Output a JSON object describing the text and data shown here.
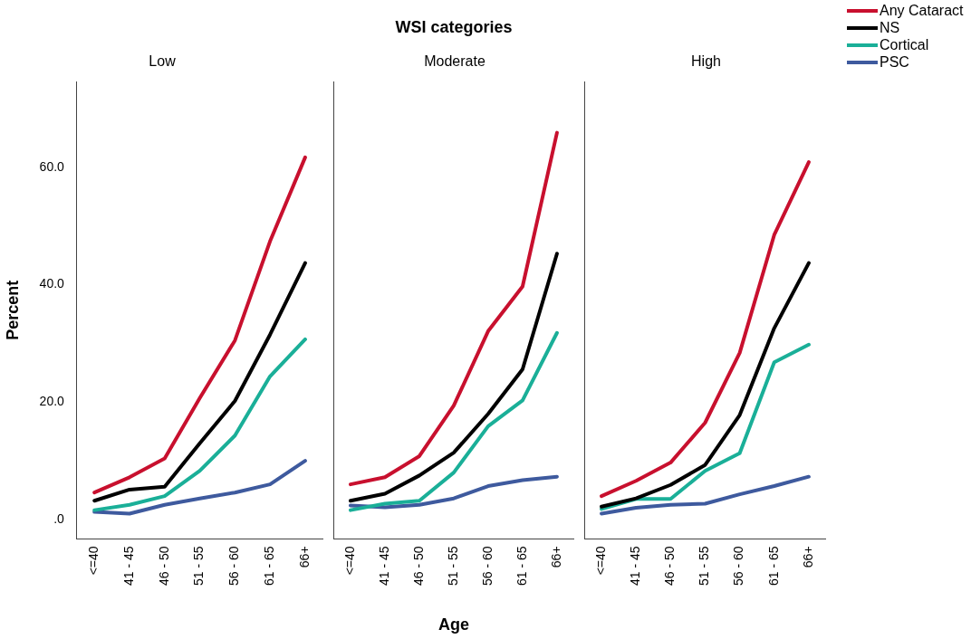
{
  "chart_data": [
    {
      "type": "line",
      "title": "Low",
      "ylabel": "Percent",
      "categories": [
        "<=40",
        "41 - 45",
        "46 - 50",
        "51 - 55",
        "56 - 60",
        "61 - 65",
        "66+"
      ],
      "ylim": [
        -3.3,
        74.6
      ],
      "yticks": [
        {
          "value": 0,
          "label": ".0"
        },
        {
          "value": 20,
          "label": "20.0"
        },
        {
          "value": 40,
          "label": "40.0"
        },
        {
          "value": 60,
          "label": "60.0"
        }
      ],
      "grid": false,
      "legend": false,
      "marker": "none",
      "line_style": "solid",
      "series": [
        {
          "color": "#c8102e",
          "values": [
            4.6,
            7.2,
            10.4,
            20.7,
            30.5,
            47.4,
            61.7
          ]
        },
        {
          "color": "#000000",
          "values": [
            3.2,
            5.1,
            5.6,
            13.0,
            20.2,
            31.5,
            43.7
          ]
        },
        {
          "color": "#1aaf98",
          "values": [
            1.6,
            2.5,
            4.0,
            8.3,
            14.3,
            24.4,
            30.7
          ]
        },
        {
          "color": "#3e5a9e",
          "values": [
            1.3,
            1.0,
            2.5,
            3.6,
            4.6,
            6.0,
            10.0
          ]
        }
      ]
    },
    {
      "type": "line",
      "title": "Moderate",
      "xlabel": "Age",
      "annotations": [
        "WSI categories"
      ],
      "categories": [
        "<=40",
        "41 - 45",
        "46 - 50",
        "51 - 55",
        "56 - 60",
        "61 - 65",
        "66+"
      ],
      "ylim": [
        -3.3,
        74.6
      ],
      "tick_labels": "x",
      "grid": false,
      "legend": false,
      "marker": "none",
      "line_style": "solid",
      "series": [
        {
          "color": "#c8102e",
          "values": [
            6.0,
            7.2,
            10.8,
            19.4,
            32.1,
            39.7,
            65.9
          ]
        },
        {
          "color": "#000000",
          "values": [
            3.2,
            4.4,
            7.5,
            11.4,
            18.0,
            25.6,
            45.3
          ]
        },
        {
          "color": "#1aaf98",
          "values": [
            1.6,
            2.7,
            3.2,
            8.0,
            15.9,
            20.3,
            31.8
          ]
        },
        {
          "color": "#3e5a9e",
          "values": [
            2.4,
            2.1,
            2.5,
            3.6,
            5.7,
            6.7,
            7.3
          ]
        }
      ]
    },
    {
      "type": "line",
      "title": "High",
      "categories": [
        "<=40",
        "41 - 45",
        "46 - 50",
        "51 - 55",
        "56 - 60",
        "61 - 65",
        "66+"
      ],
      "ylim": [
        -3.3,
        74.6
      ],
      "tick_labels": "x",
      "grid": false,
      "legend": "top right",
      "marker": "none",
      "line_style": "solid",
      "series": [
        {
          "name": "Any Cataract",
          "color": "#c8102e",
          "values": [
            4.0,
            6.6,
            9.7,
            16.5,
            28.4,
            48.5,
            60.9
          ]
        },
        {
          "name": "NS",
          "color": "#000000",
          "values": [
            2.2,
            3.6,
            5.9,
            9.3,
            17.8,
            32.6,
            43.7
          ]
        },
        {
          "name": "Cortical",
          "color": "#1aaf98",
          "values": [
            1.8,
            3.5,
            3.5,
            8.3,
            11.3,
            26.8,
            29.8
          ]
        },
        {
          "name": "PSC",
          "color": "#3e5a9e",
          "values": [
            1.0,
            2.0,
            2.5,
            2.7,
            4.3,
            5.7,
            7.3
          ]
        }
      ]
    }
  ]
}
